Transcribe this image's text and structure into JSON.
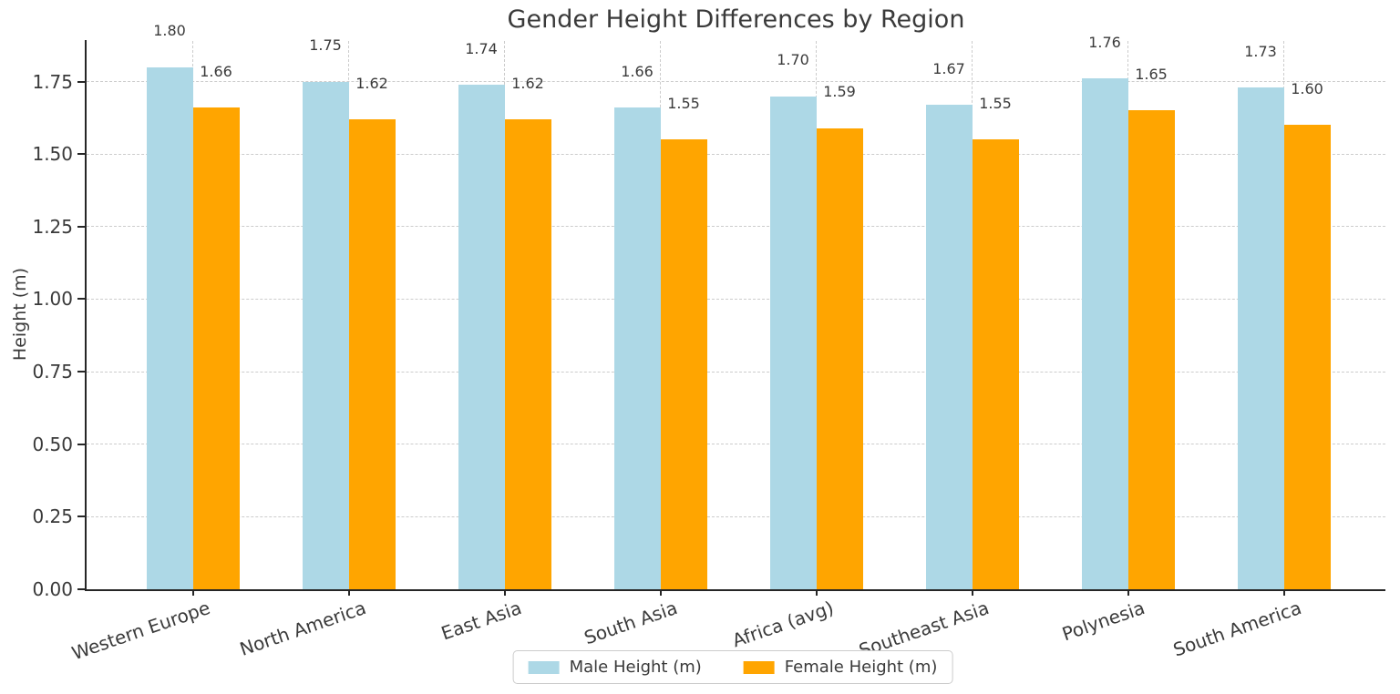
{
  "chart_data": {
    "type": "bar",
    "title": "Gender Height Differences by Region",
    "xlabel": "",
    "ylabel": "Height (m)",
    "categories": [
      "Western Europe",
      "North America",
      "East Asia",
      "South Asia",
      "Africa (avg)",
      "Southeast Asia",
      "Polynesia",
      "South America"
    ],
    "series": [
      {
        "name": "Male Height (m)",
        "color": "#ADD8E6",
        "values": [
          1.8,
          1.75,
          1.74,
          1.66,
          1.7,
          1.67,
          1.76,
          1.73
        ],
        "value_labels": [
          "1.80",
          "1.75",
          "1.74",
          "1.66",
          "1.70",
          "1.67",
          "1.76",
          "1.73"
        ]
      },
      {
        "name": "Female Height (m)",
        "color": "#FFA500",
        "values": [
          1.66,
          1.62,
          1.62,
          1.55,
          1.59,
          1.55,
          1.65,
          1.6
        ],
        "value_labels": [
          "1.66",
          "1.62",
          "1.62",
          "1.55",
          "1.59",
          "1.55",
          "1.65",
          "1.60"
        ]
      }
    ],
    "yticks": [
      0.0,
      0.25,
      0.5,
      0.75,
      1.0,
      1.25,
      1.5,
      1.75
    ],
    "ytick_labels": [
      "0.00",
      "0.25",
      "0.50",
      "0.75",
      "1.00",
      "1.25",
      "1.50",
      "1.75"
    ],
    "ylim": [
      0,
      1.89
    ],
    "grid": {
      "horizontal": true,
      "vertical": true,
      "style": "dashed"
    },
    "legend": {
      "position": "bottom center",
      "entries": [
        "Male Height (m)",
        "Female Height (m)"
      ]
    },
    "value_label_format": "%.2f"
  },
  "colors": {
    "male_bar": "#ADD8E6",
    "female_bar": "#FFA500",
    "text": "#3a3a3a",
    "grid": "#cccccc",
    "axis": "#262626",
    "legend_border": "#cccccc",
    "background": "#ffffff"
  }
}
